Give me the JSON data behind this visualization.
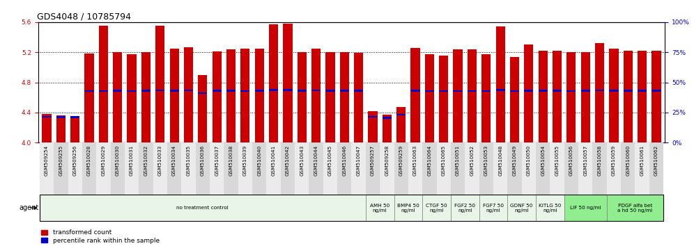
{
  "title": "GDS4048 / 10785794",
  "samples": [
    "GSM509254",
    "GSM509255",
    "GSM509256",
    "GSM510028",
    "GSM510029",
    "GSM510030",
    "GSM510031",
    "GSM510032",
    "GSM510033",
    "GSM510034",
    "GSM510035",
    "GSM510036",
    "GSM510037",
    "GSM510038",
    "GSM510039",
    "GSM510040",
    "GSM510041",
    "GSM510042",
    "GSM510043",
    "GSM510044",
    "GSM510045",
    "GSM510046",
    "GSM510047",
    "GSM509257",
    "GSM509258",
    "GSM509259",
    "GSM510063",
    "GSM510064",
    "GSM510065",
    "GSM510051",
    "GSM510052",
    "GSM510053",
    "GSM510048",
    "GSM510049",
    "GSM510050",
    "GSM510054",
    "GSM510055",
    "GSM510056",
    "GSM510057",
    "GSM510058",
    "GSM510059",
    "GSM510060",
    "GSM510061",
    "GSM510062"
  ],
  "bar_heights": [
    4.38,
    4.36,
    4.35,
    5.18,
    5.55,
    5.2,
    5.17,
    5.2,
    5.55,
    5.25,
    5.27,
    4.9,
    5.21,
    5.24,
    5.25,
    5.25,
    5.57,
    5.58,
    5.2,
    5.25,
    5.2,
    5.2,
    5.19,
    4.42,
    4.37,
    4.47,
    5.26,
    5.17,
    5.16,
    5.24,
    5.24,
    5.17,
    5.54,
    5.14,
    5.3,
    5.22,
    5.22,
    5.2,
    5.2,
    5.32,
    5.25,
    5.22,
    5.22,
    5.22
  ],
  "percentile_values": [
    4.345,
    4.338,
    4.338,
    4.685,
    4.685,
    4.69,
    4.685,
    4.69,
    4.695,
    4.69,
    4.695,
    4.66,
    4.69,
    4.69,
    4.685,
    4.69,
    4.7,
    4.7,
    4.69,
    4.695,
    4.69,
    4.69,
    4.69,
    4.345,
    4.332,
    4.37,
    4.69,
    4.685,
    4.685,
    4.685,
    4.685,
    4.685,
    4.7,
    4.685,
    4.69,
    4.69,
    4.69,
    4.685,
    4.69,
    4.695,
    4.69,
    4.69,
    4.69,
    4.69
  ],
  "ylim": [
    4.0,
    5.6
  ],
  "yticks": [
    4.0,
    4.4,
    4.8,
    5.2,
    5.6
  ],
  "right_yticks": [
    0,
    25,
    50,
    75,
    100
  ],
  "bar_color": "#CC0000",
  "percentile_color": "#0000CC",
  "bar_width": 0.65,
  "agent_groups": [
    {
      "label": "no treatment control",
      "start": 0,
      "end": 23,
      "color": "#e8f5e8"
    },
    {
      "label": "AMH 50\nng/ml",
      "start": 23,
      "end": 25,
      "color": "#e8f5e8"
    },
    {
      "label": "BMP4 50\nng/ml",
      "start": 25,
      "end": 27,
      "color": "#e8f5e8"
    },
    {
      "label": "CTGF 50\nng/ml",
      "start": 27,
      "end": 29,
      "color": "#e8f5e8"
    },
    {
      "label": "FGF2 50\nng/ml",
      "start": 29,
      "end": 31,
      "color": "#e8f5e8"
    },
    {
      "label": "FGF7 50\nng/ml",
      "start": 31,
      "end": 33,
      "color": "#e8f5e8"
    },
    {
      "label": "GDNF 50\nng/ml",
      "start": 33,
      "end": 35,
      "color": "#e8f5e8"
    },
    {
      "label": "KITLG 50\nng/ml",
      "start": 35,
      "end": 37,
      "color": "#e8f5e8"
    },
    {
      "label": "LIF 50 ng/ml",
      "start": 37,
      "end": 40,
      "color": "#90EE90"
    },
    {
      "label": "PDGF alfa bet\na hd 50 ng/ml",
      "start": 40,
      "end": 44,
      "color": "#90EE90"
    }
  ],
  "title_fontsize": 9,
  "left_axis_color": "#CC0000",
  "right_axis_color": "#0000CC",
  "tick_label_fontsize": 6.5,
  "xtick_fontsize": 5.2
}
